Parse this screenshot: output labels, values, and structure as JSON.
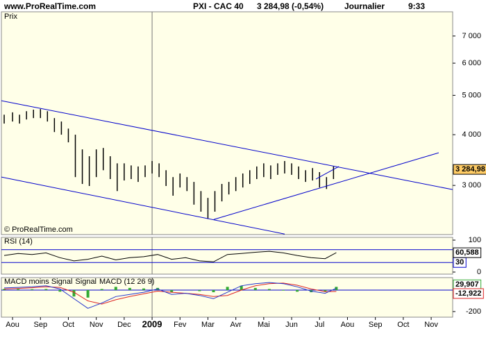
{
  "header": {
    "site": "www.ProRealTime.com",
    "instrument": "PXI - CAC 40",
    "quote": "3 284,98 (-0,54%)",
    "period": "Journalier",
    "time": "9:33"
  },
  "x_axis": {
    "xlim": [
      -0.4,
      15.77
    ],
    "xgrid": [
      5
    ],
    "xticks": [
      {
        "value": 0,
        "label": "Aou"
      },
      {
        "value": 1,
        "label": "Sep"
      },
      {
        "value": 2,
        "label": "Oct"
      },
      {
        "value": 3,
        "label": "Nov"
      },
      {
        "value": 4,
        "label": "Dec"
      },
      {
        "value": 5,
        "label": "2009"
      },
      {
        "value": 6,
        "label": "Fev"
      },
      {
        "value": 7,
        "label": "Mar"
      },
      {
        "value": 8,
        "label": "Avr"
      },
      {
        "value": 9,
        "label": "Mai"
      },
      {
        "value": 10,
        "label": "Jun"
      },
      {
        "value": 11,
        "label": "Jul"
      },
      {
        "value": 12,
        "label": "Aou"
      },
      {
        "value": 13,
        "label": "Sep"
      },
      {
        "value": 14,
        "label": "Oct"
      },
      {
        "value": 15,
        "label": "Nov"
      }
    ]
  },
  "chart_data": [
    {
      "type": "ohlc",
      "title": "Prix",
      "watermark": "© ProRealTime.com",
      "yscale": "log",
      "color": "#000000",
      "ylim": [
        2270,
        8030
      ],
      "yticks": [
        {
          "value": 3000,
          "label": "3 000"
        },
        {
          "value": 4000,
          "label": "4 000"
        },
        {
          "value": 5000,
          "label": "5 000"
        },
        {
          "value": 6000,
          "label": "6 000"
        },
        {
          "value": 7000,
          "label": "7 000"
        }
      ],
      "x": [
        -0.3,
        0,
        0.25,
        0.5,
        0.75,
        1,
        1.25,
        1.5,
        1.75,
        2,
        2.25,
        2.5,
        2.75,
        3,
        3.25,
        3.5,
        3.75,
        4,
        4.25,
        4.5,
        4.75,
        5,
        5.25,
        5.5,
        5.75,
        6,
        6.25,
        6.5,
        6.75,
        7,
        7.25,
        7.5,
        7.75,
        8,
        8.25,
        8.5,
        8.75,
        9,
        9.25,
        9.5,
        9.75,
        10,
        10.25,
        10.5,
        10.75,
        11,
        11.25,
        11.5
      ],
      "high": [
        4480,
        4540,
        4480,
        4570,
        4610,
        4625,
        4570,
        4395,
        4310,
        4140,
        4000,
        3680,
        3540,
        3680,
        3710,
        3540,
        3400,
        3400,
        3360,
        3340,
        3360,
        3445,
        3400,
        3270,
        3145,
        3210,
        3145,
        3060,
        2905,
        2795,
        2905,
        3025,
        3060,
        3145,
        3210,
        3270,
        3340,
        3400,
        3360,
        3400,
        3445,
        3400,
        3340,
        3270,
        3310,
        3235,
        3145,
        3340
      ],
      "low": [
        4260,
        4310,
        4260,
        4360,
        4395,
        4395,
        4310,
        4060,
        4000,
        3830,
        3145,
        3025,
        2990,
        3145,
        3270,
        3110,
        2905,
        3085,
        3110,
        3060,
        3145,
        3210,
        3145,
        2990,
        2830,
        2965,
        2905,
        2690,
        2585,
        2480,
        2585,
        2740,
        2850,
        2905,
        2965,
        3025,
        3110,
        3145,
        3110,
        3185,
        3210,
        3185,
        3110,
        3060,
        3085,
        2965,
        2940,
        3110
      ],
      "last_value": 3284.98,
      "last_label": "3 284,98",
      "trendline_color": "#0000cc",
      "trendlines": [
        {
          "x": [
            -0.4,
            15.77
          ],
          "y": [
            4850,
            2930
          ]
        },
        {
          "x": [
            -0.4,
            9.75
          ],
          "y": [
            3145,
            2277
          ]
        },
        {
          "x": [
            7.21,
            15.27
          ],
          "y": [
            2473,
            3610
          ]
        },
        {
          "x": [
            10.87,
            11.69
          ],
          "y": [
            3110,
            3340
          ]
        }
      ]
    },
    {
      "type": "line",
      "title": "RSI (14)",
      "color": "#000000",
      "ylim": [
        -6.5,
        108.7
      ],
      "yticks": [
        0,
        100
      ],
      "levels": [
        70,
        30
      ],
      "level_color": "#0000cc",
      "level_label_index": 1,
      "x": [
        -0.3,
        0.2,
        0.7,
        1.2,
        1.7,
        2.2,
        2.7,
        3.2,
        3.7,
        4.2,
        4.7,
        5.2,
        5.7,
        6.2,
        6.7,
        7.2,
        7.7,
        8.2,
        8.7,
        9.2,
        9.7,
        10.2,
        10.7,
        11.2,
        11.6
      ],
      "values": [
        52,
        58,
        55,
        60,
        45,
        35,
        40,
        50,
        38,
        45,
        48,
        55,
        40,
        45,
        35,
        32,
        55,
        58,
        62,
        65,
        60,
        52,
        45,
        42,
        60.588
      ],
      "last_label": "60,588"
    },
    {
      "type": "macd",
      "ylim": [
        -252,
        116
      ],
      "yticks": [
        -200
      ],
      "x": [
        -0.3,
        0.2,
        0.7,
        1.2,
        1.7,
        2.2,
        2.7,
        3.2,
        3.7,
        4.2,
        4.7,
        5.2,
        5.7,
        6.2,
        6.7,
        7.2,
        7.7,
        8.2,
        8.7,
        9.2,
        9.7,
        10.2,
        10.7,
        11.2,
        11.6
      ],
      "series": [
        {
          "name": "MACD moins Signal",
          "color": "#33aa33",
          "values": [
            10,
            10,
            8,
            10,
            -15,
            -60,
            -70,
            10,
            30,
            20,
            15,
            20,
            -20,
            0,
            -10,
            -20,
            30,
            40,
            20,
            10,
            -5,
            -15,
            -20,
            -15,
            29.907
          ],
          "last_label": "29,907"
        },
        {
          "name": "Signal",
          "color": "#dd2222",
          "values": [
            10,
            15,
            22,
            30,
            25,
            -20,
            -100,
            -130,
            -90,
            -60,
            -35,
            -10,
            -20,
            -30,
            -40,
            -60,
            -50,
            0,
            40,
            60,
            65,
            45,
            10,
            -15,
            -12.922
          ],
          "last_label": "-12,922"
        },
        {
          "name": "MACD (12 26 9)",
          "color": "#2233cc",
          "values": [
            20,
            25,
            30,
            40,
            10,
            -80,
            -170,
            -120,
            -60,
            -40,
            -20,
            10,
            -40,
            -30,
            -50,
            -80,
            -20,
            40,
            60,
            70,
            60,
            30,
            -10,
            -30,
            16.985
          ]
        }
      ]
    }
  ]
}
